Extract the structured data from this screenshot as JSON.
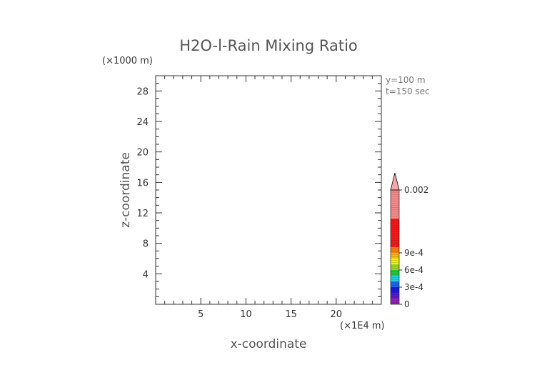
{
  "chart_data": {
    "type": "heatmap",
    "title": "H2O-l-Rain Mixing Ratio",
    "xlabel": "x-coordinate",
    "ylabel": "z-coordinate",
    "x_scale_label": "(×1E4 m)",
    "y_scale_label": "(×1000 m)",
    "info": [
      "y=100 m",
      "t=150 sec"
    ],
    "xlim": [
      0,
      25
    ],
    "ylim": [
      0,
      30
    ],
    "x_ticks": [
      5,
      10,
      15,
      20
    ],
    "y_ticks": [
      4,
      8,
      12,
      16,
      20,
      24,
      28
    ],
    "x_minor_step": 1,
    "y_minor_step": 1,
    "grid": false,
    "legend_position": "right",
    "values": [],
    "colorbar": {
      "min": 0,
      "max": 0.0022,
      "labels": [
        {
          "value": 0,
          "text": "0"
        },
        {
          "value": 0.0003,
          "text": "3e-4"
        },
        {
          "value": 0.0006,
          "text": "6e-4"
        },
        {
          "value": 0.0009,
          "text": "9e-4"
        },
        {
          "value": 0.002,
          "text": "0.002"
        }
      ],
      "bands": [
        {
          "from": 0,
          "to": 0.0001,
          "color": "#9b1fb5"
        },
        {
          "from": 0.0001,
          "to": 0.0002,
          "color": "#5a18c8"
        },
        {
          "from": 0.0002,
          "to": 0.0003,
          "color": "#1b1bd8"
        },
        {
          "from": 0.0003,
          "to": 0.0004,
          "color": "#1e66e6"
        },
        {
          "from": 0.0004,
          "to": 0.0005,
          "color": "#20d0e0"
        },
        {
          "from": 0.0005,
          "to": 0.0006,
          "color": "#22c33a"
        },
        {
          "from": 0.0006,
          "to": 0.0007,
          "color": "#9ad21e"
        },
        {
          "from": 0.0007,
          "to": 0.0008,
          "color": "#f2ef1a"
        },
        {
          "from": 0.0008,
          "to": 0.0009,
          "color": "#f7b812"
        },
        {
          "from": 0.0009,
          "to": 0.001,
          "color": "#f77a10"
        },
        {
          "from": 0.001,
          "to": 0.0015,
          "color": "#f21a1a"
        },
        {
          "from": 0.0015,
          "to": 0.002,
          "color": "#f58a8a"
        }
      ],
      "extend_color": "#f7a6a6"
    }
  }
}
